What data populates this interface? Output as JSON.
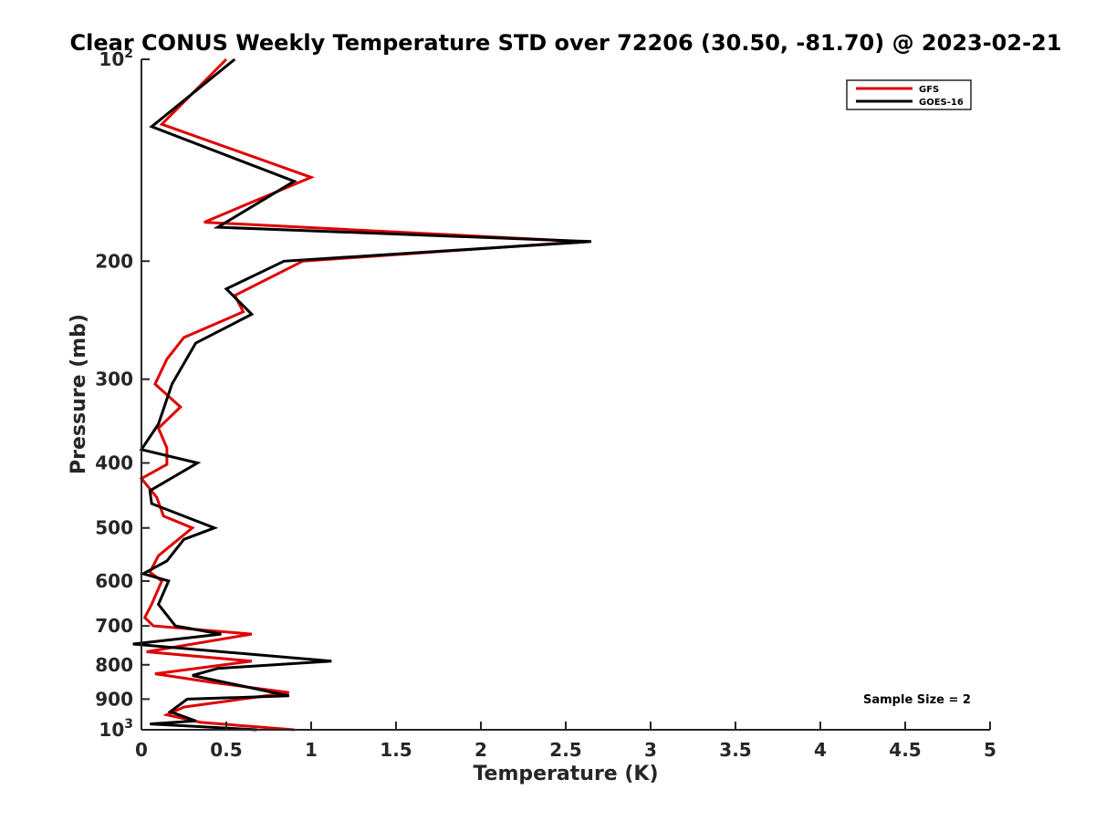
{
  "chart_data": {
    "type": "line",
    "title": "Clear CONUS Weekly Temperature STD over 72206 (30.50, -81.70) @ 2023-02-21",
    "xlabel": "Temperature (K)",
    "ylabel": "Pressure (mb)",
    "xlim": [
      0,
      5
    ],
    "ylim": [
      100,
      1000
    ],
    "y_scale": "log",
    "y_reversed": true,
    "x_ticks": [
      {
        "value": 0,
        "label": "0"
      },
      {
        "value": 0.5,
        "label": "0.5"
      },
      {
        "value": 1,
        "label": "1"
      },
      {
        "value": 1.5,
        "label": "1.5"
      },
      {
        "value": 2,
        "label": "2"
      },
      {
        "value": 2.5,
        "label": "2.5"
      },
      {
        "value": 3,
        "label": "3"
      },
      {
        "value": 3.5,
        "label": "3.5"
      },
      {
        "value": 4,
        "label": "4"
      },
      {
        "value": 4.5,
        "label": "4.5"
      },
      {
        "value": 5,
        "label": "5"
      }
    ],
    "y_ticks": [
      {
        "value": 100,
        "base": "10",
        "exp": "2"
      },
      {
        "value": 200,
        "label": "200"
      },
      {
        "value": 300,
        "label": "300"
      },
      {
        "value": 400,
        "label": "400"
      },
      {
        "value": 500,
        "label": "500"
      },
      {
        "value": 600,
        "label": "600"
      },
      {
        "value": 700,
        "label": "700"
      },
      {
        "value": 800,
        "label": "800"
      },
      {
        "value": 900,
        "label": "900"
      },
      {
        "value": 1000,
        "base": "10",
        "exp": "3"
      }
    ],
    "grid": false,
    "legend_position": "top-right",
    "annotation": "Sample Size = 2",
    "series": [
      {
        "name": "GFS",
        "color": "#e00000",
        "points": [
          [
            0.5,
            100
          ],
          [
            0.12,
            125
          ],
          [
            1.0,
            150
          ],
          [
            0.37,
            175
          ],
          [
            2.6,
            187
          ],
          [
            0.95,
            200
          ],
          [
            0.55,
            225
          ],
          [
            0.6,
            238
          ],
          [
            0.25,
            260
          ],
          [
            0.15,
            280
          ],
          [
            0.08,
            305
          ],
          [
            0.23,
            330
          ],
          [
            0.1,
            355
          ],
          [
            0.15,
            380
          ],
          [
            0.15,
            402
          ],
          [
            0.0,
            422
          ],
          [
            0.09,
            450
          ],
          [
            0.13,
            480
          ],
          [
            0.3,
            500
          ],
          [
            0.1,
            550
          ],
          [
            0.05,
            582
          ],
          [
            0.12,
            600
          ],
          [
            0.06,
            650
          ],
          [
            0.02,
            680
          ],
          [
            0.07,
            700
          ],
          [
            0.65,
            720
          ],
          [
            0.03,
            765
          ],
          [
            0.65,
            790
          ],
          [
            0.08,
            825
          ],
          [
            0.42,
            850
          ],
          [
            0.87,
            880
          ],
          [
            0.25,
            925
          ],
          [
            0.15,
            950
          ],
          [
            0.35,
            975
          ],
          [
            0.9,
            1000
          ]
        ]
      },
      {
        "name": "GOES-16",
        "color": "#000000",
        "points": [
          [
            0.55,
            100
          ],
          [
            0.06,
            126
          ],
          [
            0.9,
            152
          ],
          [
            0.45,
            178
          ],
          [
            2.65,
            187
          ],
          [
            0.84,
            200
          ],
          [
            0.5,
            220
          ],
          [
            0.65,
            240
          ],
          [
            0.32,
            265
          ],
          [
            0.18,
            305
          ],
          [
            0.1,
            350
          ],
          [
            0.0,
            382
          ],
          [
            0.33,
            400
          ],
          [
            0.05,
            440
          ],
          [
            0.06,
            460
          ],
          [
            0.43,
            500
          ],
          [
            0.25,
            520
          ],
          [
            0.15,
            560
          ],
          [
            0.01,
            585
          ],
          [
            0.16,
            600
          ],
          [
            0.1,
            650
          ],
          [
            0.2,
            700
          ],
          [
            0.47,
            720
          ],
          [
            -0.05,
            745
          ],
          [
            1.12,
            790
          ],
          [
            0.45,
            810
          ],
          [
            0.3,
            830
          ],
          [
            0.87,
            890
          ],
          [
            0.27,
            900
          ],
          [
            0.17,
            940
          ],
          [
            0.32,
            970
          ],
          [
            0.05,
            980
          ],
          [
            0.68,
            1000
          ]
        ]
      }
    ]
  }
}
